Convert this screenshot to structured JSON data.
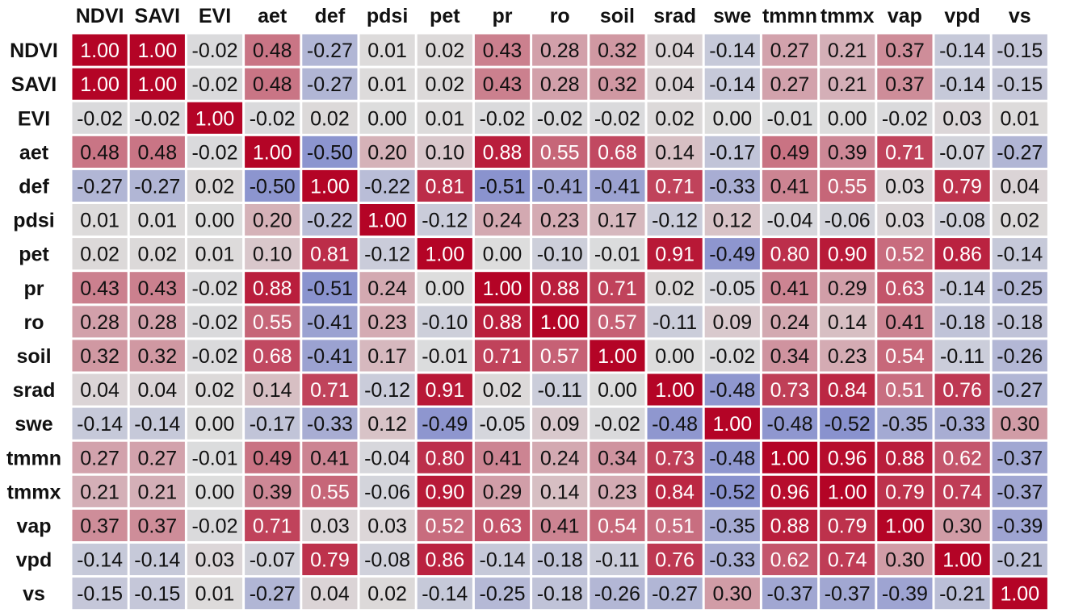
{
  "chart_data": {
    "type": "heatmap",
    "title": "",
    "xlabel": "",
    "ylabel": "",
    "labels": [
      "NDVI",
      "SAVI",
      "EVI",
      "aet",
      "def",
      "pdsi",
      "pet",
      "pr",
      "ro",
      "soil",
      "srad",
      "swe",
      "tmmn",
      "tmmx",
      "vap",
      "vpd",
      "vs"
    ],
    "value_range": [
      -1,
      1
    ],
    "value_format": "2 decimals",
    "colormap": "coolwarm",
    "colors": {
      "low": "#3b4cc0",
      "mid": "#dddddd",
      "high": "#b40426"
    },
    "matrix": [
      [
        1.0,
        1.0,
        -0.02,
        0.48,
        -0.27,
        0.01,
        0.02,
        0.43,
        0.28,
        0.32,
        0.04,
        -0.14,
        0.27,
        0.21,
        0.37,
        -0.14,
        -0.15
      ],
      [
        1.0,
        1.0,
        -0.02,
        0.48,
        -0.27,
        0.01,
        0.02,
        0.43,
        0.28,
        0.32,
        0.04,
        -0.14,
        0.27,
        0.21,
        0.37,
        -0.14,
        -0.15
      ],
      [
        -0.02,
        -0.02,
        1.0,
        -0.02,
        0.02,
        -0.0,
        0.01,
        -0.02,
        -0.02,
        -0.02,
        0.02,
        -0.0,
        -0.01,
        -0.0,
        -0.02,
        0.03,
        0.01
      ],
      [
        0.48,
        0.48,
        -0.02,
        1.0,
        -0.5,
        0.2,
        0.1,
        0.88,
        0.55,
        0.68,
        0.14,
        -0.17,
        0.49,
        0.39,
        0.71,
        -0.07,
        -0.27
      ],
      [
        -0.27,
        -0.27,
        0.02,
        -0.5,
        1.0,
        -0.22,
        0.81,
        -0.51,
        -0.41,
        -0.41,
        0.71,
        -0.33,
        0.41,
        0.55,
        0.03,
        0.79,
        0.04
      ],
      [
        0.01,
        0.01,
        -0.0,
        0.2,
        -0.22,
        1.0,
        -0.12,
        0.24,
        0.23,
        0.17,
        -0.12,
        0.12,
        -0.04,
        -0.06,
        0.03,
        -0.08,
        0.02
      ],
      [
        0.02,
        0.02,
        0.01,
        0.1,
        0.81,
        -0.12,
        1.0,
        0.0,
        -0.1,
        -0.01,
        0.91,
        -0.49,
        0.8,
        0.9,
        0.52,
        0.86,
        -0.14
      ],
      [
        0.43,
        0.43,
        -0.02,
        0.88,
        -0.51,
        0.24,
        0.0,
        1.0,
        0.88,
        0.71,
        0.02,
        -0.05,
        0.41,
        0.29,
        0.63,
        -0.14,
        -0.25
      ],
      [
        0.28,
        0.28,
        -0.02,
        0.55,
        -0.41,
        0.23,
        -0.1,
        0.88,
        1.0,
        0.57,
        -0.11,
        0.09,
        0.24,
        0.14,
        0.41,
        -0.18,
        -0.18
      ],
      [
        0.32,
        0.32,
        -0.02,
        0.68,
        -0.41,
        0.17,
        -0.01,
        0.71,
        0.57,
        1.0,
        -0.0,
        -0.02,
        0.34,
        0.23,
        0.54,
        -0.11,
        -0.26
      ],
      [
        0.04,
        0.04,
        0.02,
        0.14,
        0.71,
        -0.12,
        0.91,
        0.02,
        -0.11,
        -0.0,
        1.0,
        -0.48,
        0.73,
        0.84,
        0.51,
        0.76,
        -0.27
      ],
      [
        -0.14,
        -0.14,
        -0.0,
        -0.17,
        -0.33,
        0.12,
        -0.49,
        -0.05,
        0.09,
        -0.02,
        -0.48,
        1.0,
        -0.48,
        -0.52,
        -0.35,
        -0.33,
        0.3
      ],
      [
        0.27,
        0.27,
        -0.01,
        0.49,
        0.41,
        -0.04,
        0.8,
        0.41,
        0.24,
        0.34,
        0.73,
        -0.48,
        1.0,
        0.96,
        0.88,
        0.62,
        -0.37
      ],
      [
        0.21,
        0.21,
        -0.0,
        0.39,
        0.55,
        -0.06,
        0.9,
        0.29,
        0.14,
        0.23,
        0.84,
        -0.52,
        0.96,
        1.0,
        0.79,
        0.74,
        -0.37
      ],
      [
        0.37,
        0.37,
        -0.02,
        0.71,
        0.03,
        0.03,
        0.52,
        0.63,
        0.41,
        0.54,
        0.51,
        -0.35,
        0.88,
        0.79,
        1.0,
        0.3,
        -0.39
      ],
      [
        -0.14,
        -0.14,
        0.03,
        -0.07,
        0.79,
        -0.08,
        0.86,
        -0.14,
        -0.18,
        -0.11,
        0.76,
        -0.33,
        0.62,
        0.74,
        0.3,
        1.0,
        -0.21
      ],
      [
        -0.15,
        -0.15,
        0.01,
        -0.27,
        0.04,
        0.02,
        -0.14,
        -0.25,
        -0.18,
        -0.26,
        -0.27,
        0.3,
        -0.37,
        -0.37,
        -0.39,
        -0.21,
        1.0
      ]
    ]
  }
}
